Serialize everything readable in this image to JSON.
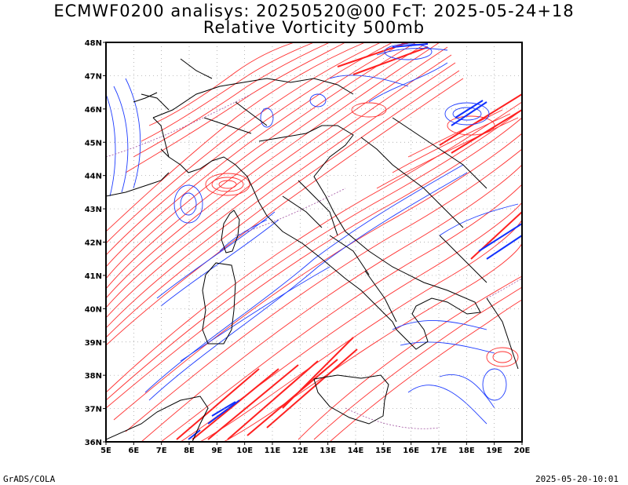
{
  "title_line1": "ECMWF0200 analisys: 20250520@00 FcT: 2025-05-24+18",
  "title_line2": "Relative Vorticity 500mb",
  "footer_left": "GrADS/COLA",
  "footer_right": "2025-05-20-10:01",
  "colors": {
    "positive": "#ff3030",
    "negative": "#1e3cff",
    "zero": "#a050a0",
    "border": "#000000",
    "grid": "#999999"
  },
  "chart_data": {
    "type": "map",
    "projection": "lat-lon",
    "xlim": [
      5,
      20
    ],
    "ylim": [
      36,
      48
    ],
    "lon_ticks": [
      5,
      6,
      7,
      8,
      9,
      10,
      11,
      12,
      13,
      14,
      15,
      16,
      17,
      18,
      19,
      20
    ],
    "lon_labels": [
      "5E",
      "6E",
      "7E",
      "8E",
      "9E",
      "10E",
      "11E",
      "12E",
      "13E",
      "14E",
      "15E",
      "16E",
      "17E",
      "18E",
      "19E",
      "20E"
    ],
    "lat_ticks": [
      36,
      37,
      38,
      39,
      40,
      41,
      42,
      43,
      44,
      45,
      46,
      47,
      48
    ],
    "lat_labels": [
      "36N",
      "37N",
      "38N",
      "39N",
      "40N",
      "41N",
      "42N",
      "43N",
      "44N",
      "45N",
      "46N",
      "47N",
      "48N"
    ],
    "field": "relative vorticity",
    "level": "500mb",
    "grid": true
  }
}
